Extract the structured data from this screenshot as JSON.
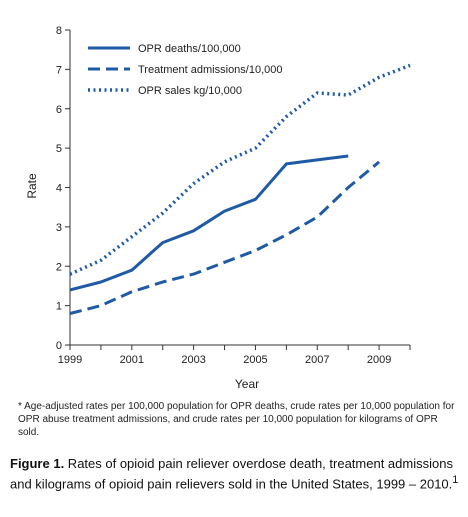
{
  "chart_data": {
    "type": "line",
    "xlabel": "Year",
    "ylabel": "Rate",
    "xlim": [
      1999,
      2010
    ],
    "ylim": [
      0,
      8
    ],
    "x_ticks": [
      "1999",
      "2001",
      "2003",
      "2005",
      "2007",
      "2009"
    ],
    "y_ticks": [
      "0",
      "1",
      "2",
      "3",
      "4",
      "5",
      "6",
      "7",
      "8"
    ],
    "grid": false,
    "legend_position": "top-left",
    "series_color": "#1f5aa6",
    "series": [
      {
        "name": "OPR deaths/100,000",
        "style": "solid",
        "x": [
          1999,
          2000,
          2001,
          2002,
          2003,
          2004,
          2005,
          2006,
          2007,
          2008
        ],
        "values": [
          1.4,
          1.6,
          1.9,
          2.6,
          2.9,
          3.4,
          3.7,
          4.6,
          4.7,
          4.8
        ]
      },
      {
        "name": "Treatment admissions/10,000",
        "style": "dashed",
        "x": [
          1999,
          2000,
          2001,
          2002,
          2003,
          2004,
          2005,
          2006,
          2007,
          2008,
          2009
        ],
        "values": [
          0.8,
          1.0,
          1.35,
          1.6,
          1.8,
          2.1,
          2.4,
          2.8,
          3.25,
          4.0,
          4.65
        ]
      },
      {
        "name": "OPR sales kg/10,000",
        "style": "dotted",
        "x": [
          1999,
          2000,
          2001,
          2002,
          2003,
          2004,
          2005,
          2006,
          2007,
          2008,
          2009,
          2010
        ],
        "values": [
          1.8,
          2.15,
          2.75,
          3.35,
          4.1,
          4.65,
          5.0,
          5.8,
          6.4,
          6.35,
          6.8,
          7.1
        ]
      }
    ]
  },
  "footnote": "* Age-adjusted rates per 100,000 population for OPR deaths, crude rates per 10,000 population for OPR abuse treatment admissions, and crude rates per 10,000 population for kilograms of OPR sold.",
  "caption": {
    "label": "Figure 1.",
    "text": " Rates of opioid pain reliever overdose death, treatment admissions and kilograms of opioid pain relievers sold in the United States, 1999 – 2010.",
    "superscript": "1"
  }
}
